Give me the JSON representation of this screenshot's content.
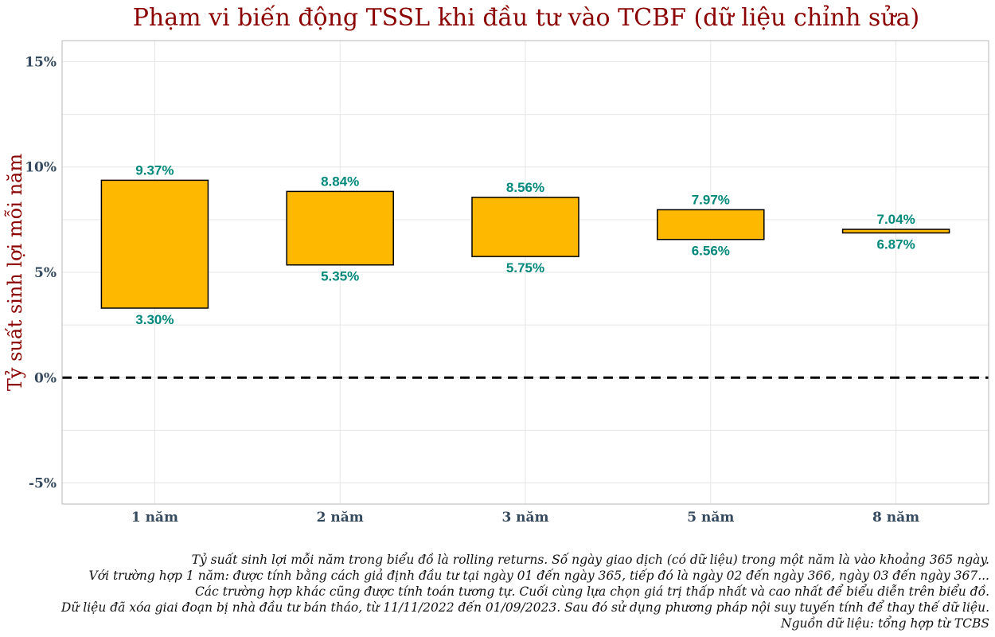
{
  "chart_data": {
    "type": "floating-bar",
    "title": "Phạm vi biến động TSSL khi đầu tư vào TCBF (dữ liệu chỉnh sửa)",
    "xlabel": "",
    "ylabel": "Tỷ suất sinh lợi mỗi năm",
    "categories": [
      "1 năm",
      "2 năm",
      "3 năm",
      "5 năm",
      "8 năm"
    ],
    "series": [
      {
        "name": "min",
        "values": [
          3.3,
          5.35,
          5.75,
          6.56,
          6.87
        ]
      },
      {
        "name": "max",
        "values": [
          9.37,
          8.84,
          8.56,
          7.97,
          7.04
        ]
      }
    ],
    "min_labels": [
      "3.30%",
      "5.35%",
      "5.75%",
      "6.56%",
      "6.87%"
    ],
    "max_labels": [
      "9.37%",
      "8.84%",
      "8.56%",
      "7.97%",
      "7.04%"
    ],
    "ylim": [
      -6,
      16
    ],
    "yticks": [
      -5,
      0,
      5,
      10,
      15
    ],
    "ytick_labels": [
      "-5%",
      "0%",
      "5%",
      "10%",
      "15%"
    ],
    "reference_line": 0,
    "grid": true,
    "colors": {
      "bar": "#ffb800",
      "label": "#00897b",
      "title": "#8b0000",
      "tick": "#34495e"
    }
  },
  "caption": [
    "Tỷ suất sinh lợi mỗi năm trong biểu đồ là rolling returns. Số ngày giao dịch (có dữ liệu) trong một năm là vào khoảng 365 ngày.",
    "Với trường hợp 1 năm: được tính bằng cách giả định đầu tư tại ngày 01 đến ngày 365, tiếp đó là ngày 02 đến ngày 366, ngày 03 đến ngày 367...",
    "Các trường hợp khác cũng được tính toán tương tự. Cuối cùng lựa chọn giá trị thấp nhất và cao nhất để biểu diễn trên biểu đồ.",
    "Dữ liệu đã xóa giai đoạn bị nhà đầu tư bán tháo, từ 11/11/2022 đến 01/09/2023. Sau đó sử dụng phương pháp nội suy tuyến tính để thay thế dữ liệu.",
    "Nguồn dữ liệu: tổng hợp từ TCBS"
  ]
}
